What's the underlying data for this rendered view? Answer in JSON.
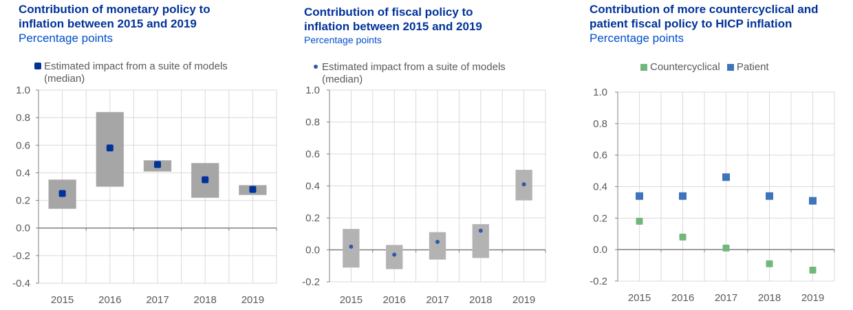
{
  "colors": {
    "title": "#003299",
    "subtitle": "#004ecc",
    "range_box": "#b3b3b3",
    "range_box_dark": "#a6a6a6",
    "median_dark": "#003299",
    "median_mid": "#2f5aa8",
    "countercyclical": "#71b77a",
    "patient": "#3f73ba",
    "grid": "#d9d9d9",
    "axis": "#7f7f7f",
    "tick_text": "#595959"
  },
  "chart_data": [
    {
      "type": "scatter",
      "title": "Contribution of monetary policy to\ninflation between 2015 and 2019",
      "subtitle": "Percentage points",
      "legend": [
        "Estimated impact from a suite of models\n(median)"
      ],
      "categories": [
        "2015",
        "2016",
        "2017",
        "2018",
        "2019"
      ],
      "series": [
        {
          "name": "Estimated impact from a suite of models (median)",
          "values": [
            0.25,
            0.58,
            0.46,
            0.35,
            0.28
          ]
        }
      ],
      "ranges": [
        {
          "low": 0.14,
          "high": 0.35
        },
        {
          "low": 0.3,
          "high": 0.84
        },
        {
          "low": 0.41,
          "high": 0.49
        },
        {
          "low": 0.22,
          "high": 0.47
        },
        {
          "low": 0.24,
          "high": 0.31
        }
      ],
      "ylim": [
        -0.4,
        1.0
      ],
      "yticks": [
        -0.4,
        -0.2,
        0.0,
        0.2,
        0.4,
        0.6,
        0.8,
        1.0
      ],
      "ytick_labels": [
        "-0.4",
        "-0.2",
        "0.0",
        "0.2",
        "0.4",
        "0.6",
        "0.8",
        "1.0"
      ],
      "xlabel": "",
      "ylabel": "",
      "grid": true,
      "legend_position": "top-left"
    },
    {
      "type": "scatter",
      "title": "Contribution of fiscal policy to\ninflation between 2015 and 2019",
      "subtitle": "Percentage points",
      "legend": [
        "Estimated impact from a suite of models\n(median)"
      ],
      "categories": [
        "2015",
        "2016",
        "2017",
        "2018",
        "2019"
      ],
      "series": [
        {
          "name": "Estimated impact from a suite of models (median)",
          "values": [
            0.02,
            -0.03,
            0.05,
            0.12,
            0.41
          ]
        }
      ],
      "ranges": [
        {
          "low": -0.11,
          "high": 0.13
        },
        {
          "low": -0.12,
          "high": 0.03
        },
        {
          "low": -0.06,
          "high": 0.11
        },
        {
          "low": -0.05,
          "high": 0.16
        },
        {
          "low": 0.31,
          "high": 0.5
        }
      ],
      "ylim": [
        -0.2,
        1.0
      ],
      "yticks": [
        -0.2,
        0.0,
        0.2,
        0.4,
        0.6,
        0.8,
        1.0
      ],
      "ytick_labels": [
        "-0.2",
        "0.0",
        "0.2",
        "0.4",
        "0.6",
        "0.8",
        "1.0"
      ],
      "xlabel": "",
      "ylabel": "",
      "grid": true,
      "legend_position": "top-left"
    },
    {
      "type": "scatter",
      "title": "Contribution of more countercyclical and\npatient fiscal policy to HICP inflation",
      "subtitle": "Percentage points",
      "legend": [
        "Countercyclical",
        "Patient"
      ],
      "categories": [
        "2015",
        "2016",
        "2017",
        "2018",
        "2019"
      ],
      "series": [
        {
          "name": "Countercyclical",
          "values": [
            0.18,
            0.08,
            0.01,
            -0.09,
            -0.13
          ]
        },
        {
          "name": "Patient",
          "values": [
            0.34,
            0.34,
            0.46,
            0.34,
            0.31
          ]
        }
      ],
      "ylim": [
        -0.2,
        1.0
      ],
      "yticks": [
        -0.2,
        0.0,
        0.2,
        0.4,
        0.6,
        0.8,
        1.0
      ],
      "ytick_labels": [
        "-0.2",
        "0.0",
        "0.2",
        "0.4",
        "0.6",
        "0.8",
        "1.0"
      ],
      "xlabel": "",
      "ylabel": "",
      "grid": true,
      "legend_position": "top-center"
    }
  ]
}
